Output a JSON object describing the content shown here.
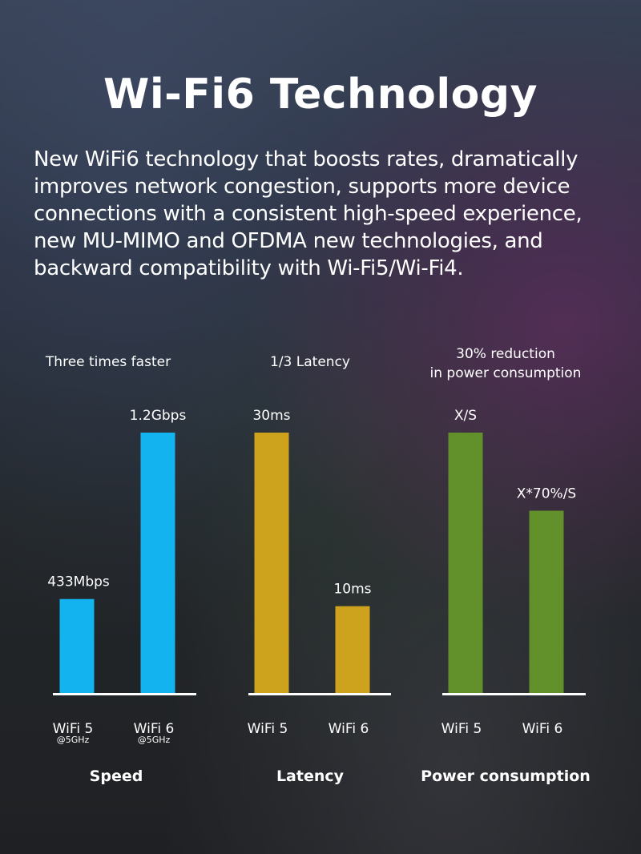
{
  "header": {
    "title": "Wi-Fi6 Technology",
    "description": "New WiFi6 technology that boosts rates, dramatically improves network congestion, supports more device connections with a consistent high-speed experience, new MU-MIMO and OFDMA new technologies, and backward compatibility with Wi-Fi5/Wi-Fi4."
  },
  "chart_data": [
    {
      "type": "bar",
      "subtitle": [
        "Three times faster"
      ],
      "title": "Speed",
      "color": "#12b3ee",
      "categories": [
        "WiFi 5",
        "WiFi 6"
      ],
      "category_notes": [
        "@5GHz",
        "@5GHz"
      ],
      "values": [
        433,
        1200
      ],
      "value_labels": [
        "433Mbps",
        "1.2Gbps"
      ],
      "unit": "Mbps"
    },
    {
      "type": "bar",
      "subtitle": [
        "1/3 Latency"
      ],
      "title": "Latency",
      "color": "#cda21d",
      "categories": [
        "WiFi 5",
        "WiFi 6"
      ],
      "values": [
        30,
        10
      ],
      "value_labels": [
        "30ms",
        "10ms"
      ],
      "unit": "ms"
    },
    {
      "type": "bar",
      "subtitle": [
        "30% reduction",
        "in power consumption"
      ],
      "title": "Power consumption",
      "color": "#62902a",
      "categories": [
        "WiFi 5",
        "WiFi 6"
      ],
      "values": [
        100,
        70
      ],
      "value_labels": [
        "X/S",
        "X*70%/S"
      ],
      "unit": "%"
    }
  ]
}
